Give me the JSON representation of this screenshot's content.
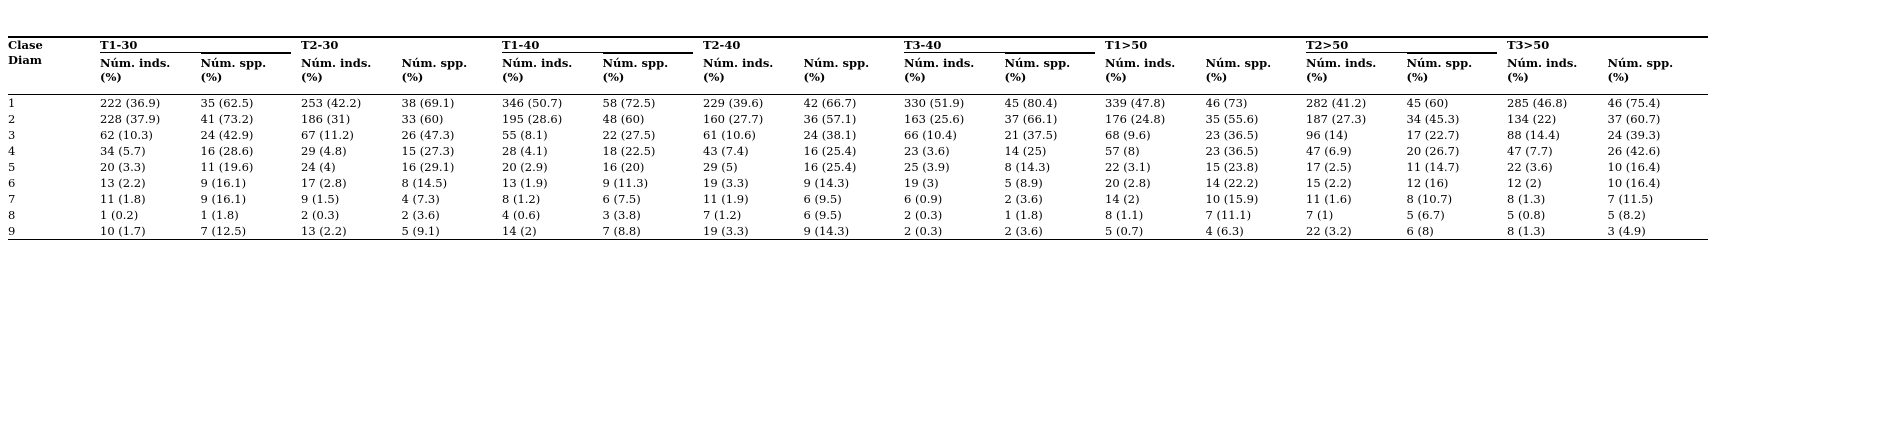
{
  "table": {
    "corner_header": "Clase\nDiam",
    "groups": [
      "T1-30",
      "T2-30",
      "T1-40",
      "T2-40",
      "T3-40",
      "T1>50",
      "T2>50",
      "T3>50"
    ],
    "sub_headers": [
      "Núm. inds.\n(%)",
      "Núm. spp.\n(%)"
    ],
    "rows": [
      {
        "label": "1",
        "cells": [
          "222 (36.9)",
          "35 (62.5)",
          "253 (42.2)",
          "38 (69.1)",
          "346 (50.7)",
          "58 (72.5)",
          "229 (39.6)",
          "42 (66.7)",
          "330 (51.9)",
          "45 (80.4)",
          "339 (47.8)",
          "46 (73)",
          "282 (41.2)",
          "45 (60)",
          "285 (46.8)",
          "46 (75.4)"
        ]
      },
      {
        "label": "2",
        "cells": [
          "228 (37.9)",
          "41 (73.2)",
          "186 (31)",
          "33 (60)",
          "195 (28.6)",
          "48 (60)",
          "160 (27.7)",
          "36 (57.1)",
          "163 (25.6)",
          "37 (66.1)",
          "176 (24.8)",
          "35 (55.6)",
          "187 (27.3)",
          "34 (45.3)",
          "134 (22)",
          "37 (60.7)"
        ]
      },
      {
        "label": "3",
        "cells": [
          "62 (10.3)",
          "24 (42.9)",
          "67 (11.2)",
          "26 (47.3)",
          "55 (8.1)",
          "22 (27.5)",
          "61 (10.6)",
          "24 (38.1)",
          "66 (10.4)",
          "21 (37.5)",
          "68 (9.6)",
          "23 (36.5)",
          "96 (14)",
          "17 (22.7)",
          "88 (14.4)",
          "24 (39.3)"
        ]
      },
      {
        "label": "4",
        "cells": [
          "34 (5.7)",
          "16 (28.6)",
          "29 (4.8)",
          "15 (27.3)",
          "28 (4.1)",
          "18 (22.5)",
          "43 (7.4)",
          "16 (25.4)",
          "23 (3.6)",
          "14 (25)",
          "57 (8)",
          "23 (36.5)",
          "47 (6.9)",
          "20 (26.7)",
          "47 (7.7)",
          "26 (42.6)"
        ]
      },
      {
        "label": "5",
        "cells": [
          "20 (3.3)",
          "11 (19.6)",
          "24 (4)",
          "16 (29.1)",
          "20 (2.9)",
          "16 (20)",
          "29 (5)",
          "16 (25.4)",
          "25 (3.9)",
          "8 (14.3)",
          "22 (3.1)",
          "15 (23.8)",
          "17 (2.5)",
          "11 (14.7)",
          "22 (3.6)",
          "10 (16.4)"
        ]
      },
      {
        "label": "6",
        "cells": [
          "13 (2.2)",
          "9 (16.1)",
          "17 (2.8)",
          "8 (14.5)",
          "13 (1.9)",
          "9 (11.3)",
          "19 (3.3)",
          "9 (14.3)",
          "19 (3)",
          "5 (8.9)",
          "20 (2.8)",
          "14 (22.2)",
          "15 (2.2)",
          "12 (16)",
          "12 (2)",
          "10 (16.4)"
        ]
      },
      {
        "label": "7",
        "cells": [
          "11 (1.8)",
          "9 (16.1)",
          "9 (1.5)",
          "4 (7.3)",
          "8 (1.2)",
          "6 (7.5)",
          "11 (1.9)",
          "6 (9.5)",
          "6 (0.9)",
          "2 (3.6)",
          "14 (2)",
          "10 (15.9)",
          "11 (1.6)",
          "8 (10.7)",
          "8 (1.3)",
          "7 (11.5)"
        ]
      },
      {
        "label": "8",
        "cells": [
          "1 (0.2)",
          "1 (1.8)",
          "2 (0.3)",
          "2 (3.6)",
          "4 (0.6)",
          "3 (3.8)",
          "7 (1.2)",
          "6 (9.5)",
          "2 (0.3)",
          "1 (1.8)",
          "8 (1.1)",
          "7 (11.1)",
          "7 (1)",
          "5 (6.7)",
          "5 (0.8)",
          "5 (8.2)"
        ]
      },
      {
        "label": "9",
        "cells": [
          "10 (1.7)",
          "7 (12.5)",
          "13 (2.2)",
          "5 (9.1)",
          "14 (2)",
          "7 (8.8)",
          "19 (3.3)",
          "9 (14.3)",
          "2 (0.3)",
          "2 (3.6)",
          "5 (0.7)",
          "4 (6.3)",
          "22 (3.2)",
          "6 (8)",
          "8 (1.3)",
          "3 (4.9)"
        ]
      }
    ]
  },
  "colors": {
    "text": "#000000",
    "background": "#ffffff",
    "rule": "#000000"
  }
}
